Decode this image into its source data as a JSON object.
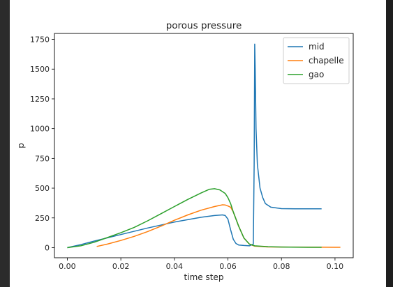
{
  "chart_data": {
    "type": "line",
    "title": "porous pressure",
    "xlabel": "time step",
    "ylabel": "p",
    "xlim": [
      -0.0048,
      0.1068
    ],
    "ylim": [
      -85,
      1800
    ],
    "xticks": [
      0.0,
      0.02,
      0.04,
      0.06,
      0.08,
      0.1
    ],
    "xtick_labels": [
      "0.00",
      "0.02",
      "0.04",
      "0.06",
      "0.08",
      "0.10"
    ],
    "yticks": [
      0,
      250,
      500,
      750,
      1000,
      1250,
      1500,
      1750
    ],
    "ytick_labels": [
      "0",
      "250",
      "500",
      "750",
      "1000",
      "1250",
      "1500",
      "1750"
    ],
    "grid": false,
    "legend_position": "top-right",
    "series": [
      {
        "name": "mid",
        "color": "#1f77b4",
        "x": [
          0.0,
          0.005,
          0.01,
          0.02,
          0.03,
          0.04,
          0.05,
          0.055,
          0.058,
          0.059,
          0.06,
          0.061,
          0.062,
          0.063,
          0.064,
          0.066,
          0.068,
          0.0695,
          0.0698,
          0.07,
          0.0702,
          0.0705,
          0.071,
          0.072,
          0.073,
          0.074,
          0.076,
          0.08,
          0.085,
          0.09,
          0.095
        ],
        "y": [
          0,
          25,
          55,
          110,
          165,
          215,
          255,
          270,
          275,
          270,
          240,
          150,
          70,
          35,
          22,
          18,
          15,
          30,
          700,
          1710,
          1500,
          1000,
          700,
          500,
          420,
          370,
          340,
          328,
          326,
          326,
          326
        ]
      },
      {
        "name": "chapelle",
        "color": "#ff7f0e",
        "x": [
          0.011,
          0.015,
          0.02,
          0.025,
          0.03,
          0.035,
          0.04,
          0.045,
          0.05,
          0.055,
          0.058,
          0.059,
          0.06,
          0.061,
          0.062,
          0.064,
          0.066,
          0.068,
          0.07,
          0.075,
          0.08,
          0.09,
          0.1,
          0.102
        ],
        "y": [
          10,
          30,
          60,
          95,
          135,
          180,
          230,
          275,
          315,
          345,
          360,
          358,
          350,
          340,
          300,
          180,
          80,
          30,
          12,
          6,
          5,
          4,
          3,
          3
        ]
      },
      {
        "name": "gao",
        "color": "#2ca02c",
        "x": [
          0.0,
          0.005,
          0.01,
          0.015,
          0.02,
          0.025,
          0.03,
          0.035,
          0.04,
          0.045,
          0.05,
          0.053,
          0.055,
          0.057,
          0.059,
          0.06,
          0.061,
          0.062,
          0.064,
          0.066,
          0.068,
          0.07,
          0.075,
          0.08,
          0.09,
          0.095
        ],
        "y": [
          0,
          15,
          45,
          85,
          125,
          170,
          225,
          285,
          345,
          405,
          460,
          490,
          495,
          485,
          455,
          420,
          370,
          300,
          180,
          80,
          30,
          15,
          8,
          5,
          3,
          3
        ]
      }
    ]
  }
}
